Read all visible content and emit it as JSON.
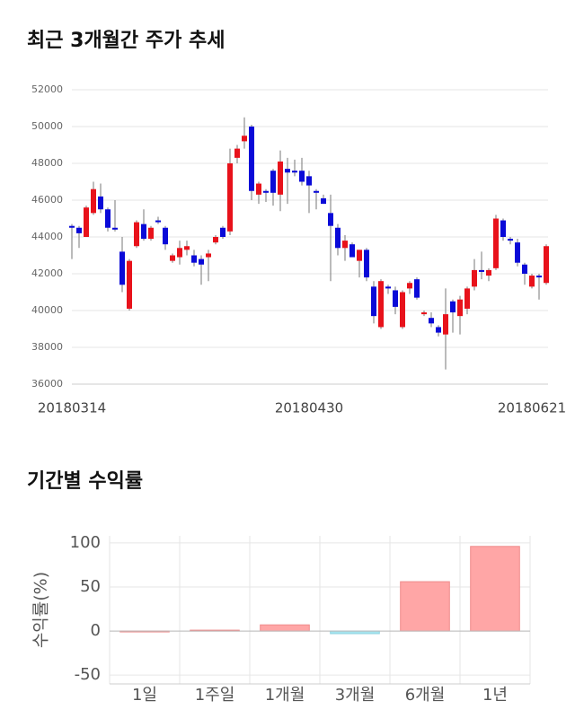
{
  "chart_data": [
    {
      "type": "candlestick",
      "title": "최근 3개월간 주가 추세",
      "categories": [
        "20180314",
        null,
        null,
        null,
        null,
        null,
        null,
        null,
        null,
        null,
        null,
        null,
        null,
        null,
        null,
        null,
        null,
        null,
        null,
        null,
        null,
        null,
        null,
        null,
        null,
        null,
        null,
        null,
        null,
        null,
        null,
        null,
        null,
        "20180430",
        null,
        null,
        null,
        null,
        null,
        null,
        null,
        null,
        null,
        null,
        null,
        null,
        null,
        null,
        null,
        null,
        null,
        null,
        null,
        null,
        null,
        null,
        null,
        null,
        null,
        null,
        null,
        null,
        null,
        null,
        "20180621",
        null,
        null
      ],
      "open": [
        44600,
        44500,
        44000,
        45300,
        46200,
        45500,
        44500,
        43200,
        40100,
        43500,
        44700,
        43900,
        44900,
        44500,
        42700,
        42900,
        43300,
        43000,
        42800,
        42900,
        43700,
        44500,
        44300,
        48300,
        49200,
        50000,
        46300,
        46500,
        47600,
        46300,
        47700,
        47600,
        47600,
        47300,
        46500,
        46100,
        45300,
        44500,
        43400,
        43600,
        42700,
        43300,
        41300,
        39100,
        41300,
        41100,
        39100,
        41200,
        41700,
        39800,
        39600,
        39100,
        38700,
        40500,
        39700,
        40100,
        41300,
        42200,
        41900,
        42300,
        44900,
        43900,
        43700,
        42500,
        41300,
        41900,
        41500
      ],
      "high": [
        44700,
        44600,
        45700,
        47000,
        46900,
        45600,
        46000,
        44000,
        42800,
        44900,
        45500,
        44600,
        45100,
        44600,
        43100,
        43800,
        43800,
        43300,
        43000,
        43300,
        44100,
        44600,
        48800,
        49000,
        50500,
        50100,
        47000,
        46600,
        47700,
        48700,
        48300,
        48200,
        48300,
        47600,
        46600,
        46300,
        46300,
        44700,
        44100,
        43700,
        43300,
        43400,
        41600,
        41700,
        41400,
        41300,
        41100,
        41600,
        41800,
        40000,
        39900,
        39200,
        41200,
        40600,
        40800,
        41300,
        42800,
        43200,
        42300,
        45200,
        45000,
        44000,
        43900,
        42600,
        42000,
        42000,
        43600
      ],
      "low": [
        42800,
        43400,
        44000,
        45200,
        45300,
        44300,
        44300,
        41000,
        40000,
        43400,
        43800,
        43800,
        44700,
        43300,
        42600,
        42500,
        43000,
        42400,
        41400,
        41600,
        43600,
        43900,
        44100,
        48000,
        48800,
        46000,
        45800,
        45900,
        45700,
        45400,
        45800,
        47300,
        46800,
        45300,
        45500,
        45800,
        41600,
        43000,
        42700,
        42900,
        41800,
        41600,
        39300,
        39000,
        40900,
        39800,
        39000,
        40900,
        40600,
        39700,
        39100,
        38600,
        36800,
        38800,
        38700,
        39800,
        41100,
        41700,
        41600,
        42200,
        43800,
        43600,
        42400,
        41400,
        41200,
        40600,
        41400
      ],
      "close": [
        44500,
        44200,
        45600,
        46600,
        45500,
        44500,
        44400,
        41400,
        42700,
        44800,
        43900,
        44500,
        44800,
        43600,
        43000,
        43400,
        43500,
        42600,
        42500,
        43100,
        44000,
        44000,
        48000,
        48800,
        49500,
        46500,
        46900,
        46400,
        46400,
        48100,
        47500,
        47500,
        47000,
        46800,
        46400,
        45800,
        44600,
        43400,
        43800,
        42900,
        43300,
        41800,
        39700,
        41600,
        41200,
        40200,
        41000,
        41500,
        40700,
        39900,
        39300,
        38800,
        39800,
        39900,
        40600,
        41200,
        42200,
        42100,
        42200,
        45000,
        44000,
        43800,
        42600,
        42000,
        41900,
        41800,
        43500
      ],
      "up_color": "#e8121b",
      "down_color": "#0a0ad8",
      "ylim": [
        36000,
        52000
      ],
      "yticks": [
        36000,
        38000,
        40000,
        42000,
        44000,
        46000,
        48000,
        50000,
        52000
      ],
      "grid": true
    },
    {
      "type": "bar",
      "title": "기간별 수익률",
      "y_label": "수익률(%)",
      "categories": [
        "1일",
        "1주일",
        "1개월",
        "3개월",
        "6개월",
        "1년"
      ],
      "values": [
        0,
        1,
        7,
        -3,
        56,
        96
      ],
      "positive_color": "#ffa6a6",
      "negative_color": "#a6e4ee",
      "ylim": [
        -60,
        108
      ],
      "yticks": [
        -50,
        0,
        50,
        100
      ],
      "grid": true
    }
  ]
}
